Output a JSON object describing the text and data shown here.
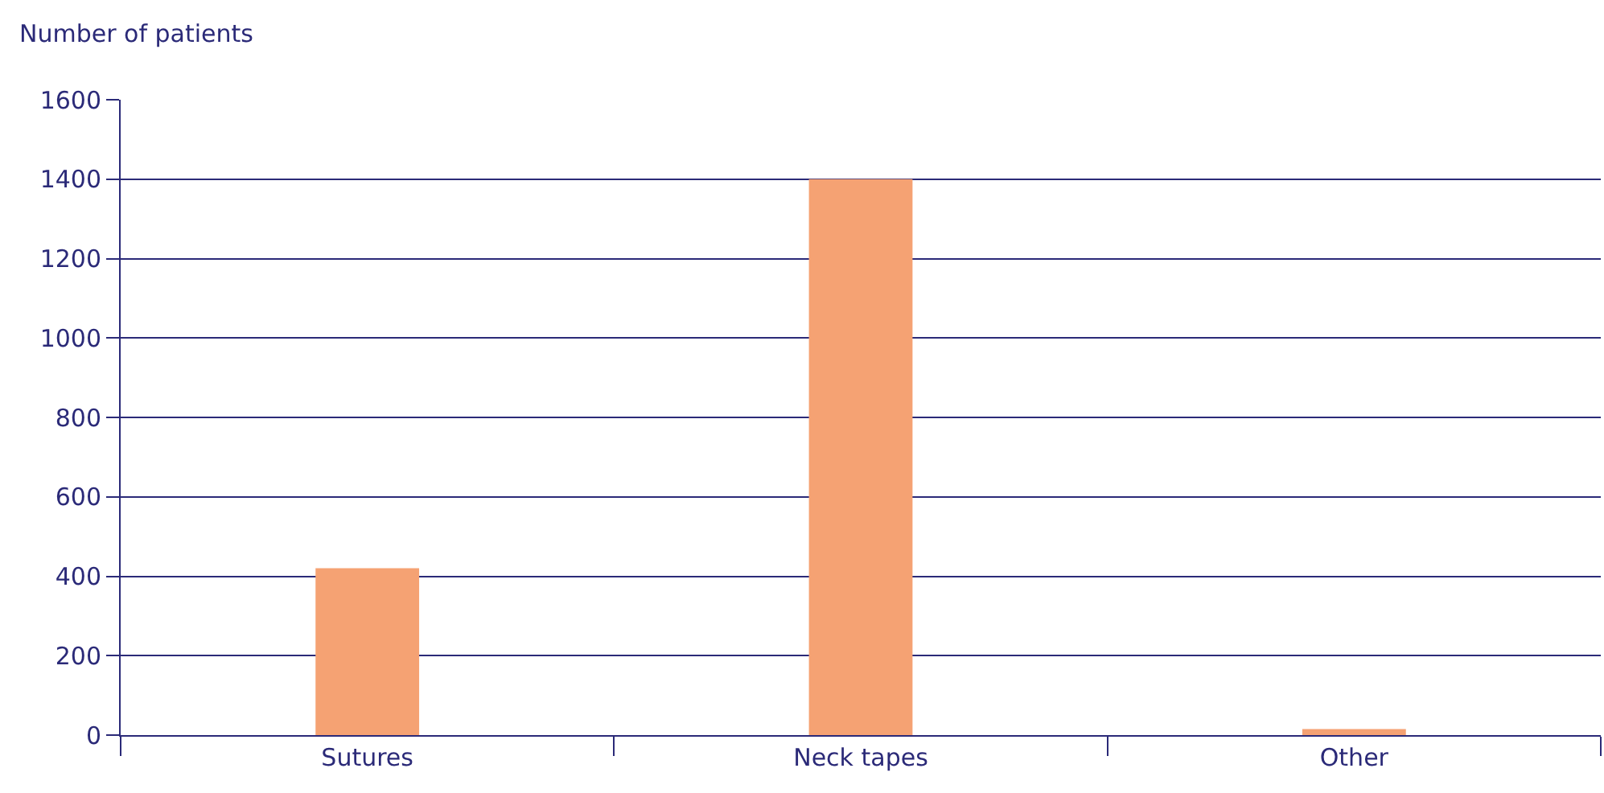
{
  "chart_data": {
    "type": "bar",
    "ylabel": "Number of patients",
    "categories": [
      "Sutures",
      "Neck tapes",
      "Other"
    ],
    "values": [
      420,
      1400,
      15
    ],
    "color": "#f5a273",
    "ylim": [
      0,
      1600
    ],
    "yticks": [
      0,
      200,
      400,
      600,
      800,
      1000,
      1200,
      1400,
      1600
    ],
    "grid": "y",
    "legend": false
  }
}
